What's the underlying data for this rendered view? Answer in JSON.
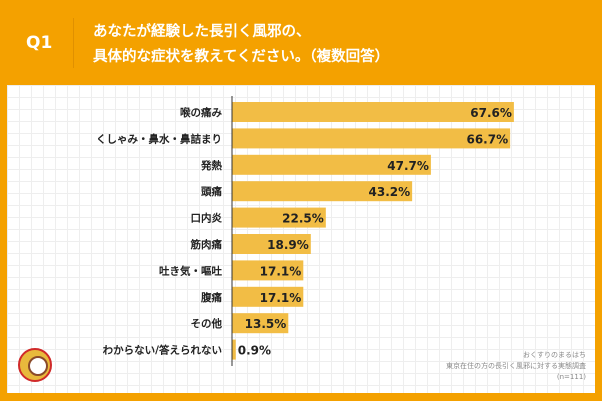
{
  "header": {
    "q": "Q1",
    "title_line1": "あなたが経験した長引く風邪の、",
    "title_line2": "具体的な症状を教えてください。（複数回答）"
  },
  "source": {
    "line1": "おくすりのまるはち",
    "line2": "東京在住の方の長引く風邪に対する実態調査",
    "line3": "(n=111)"
  },
  "chart_data": {
    "type": "bar",
    "orientation": "horizontal",
    "bar_color": "#f2bd45",
    "categories": [
      "喉の痛み",
      "くしゃみ・鼻水・鼻詰まり",
      "発熱",
      "頭痛",
      "口内炎",
      "筋肉痛",
      "吐き気・嘔吐",
      "腹痛",
      "その他",
      "わからない/答えられない"
    ],
    "values": [
      67.6,
      66.7,
      47.7,
      43.2,
      22.5,
      18.9,
      17.1,
      17.1,
      13.5,
      0.9
    ],
    "labels": [
      "67.6%",
      "66.7%",
      "47.7%",
      "43.2%",
      "22.5%",
      "18.9%",
      "17.1%",
      "17.1%",
      "13.5%",
      "0.9%"
    ],
    "xlim": [
      0,
      100
    ]
  }
}
